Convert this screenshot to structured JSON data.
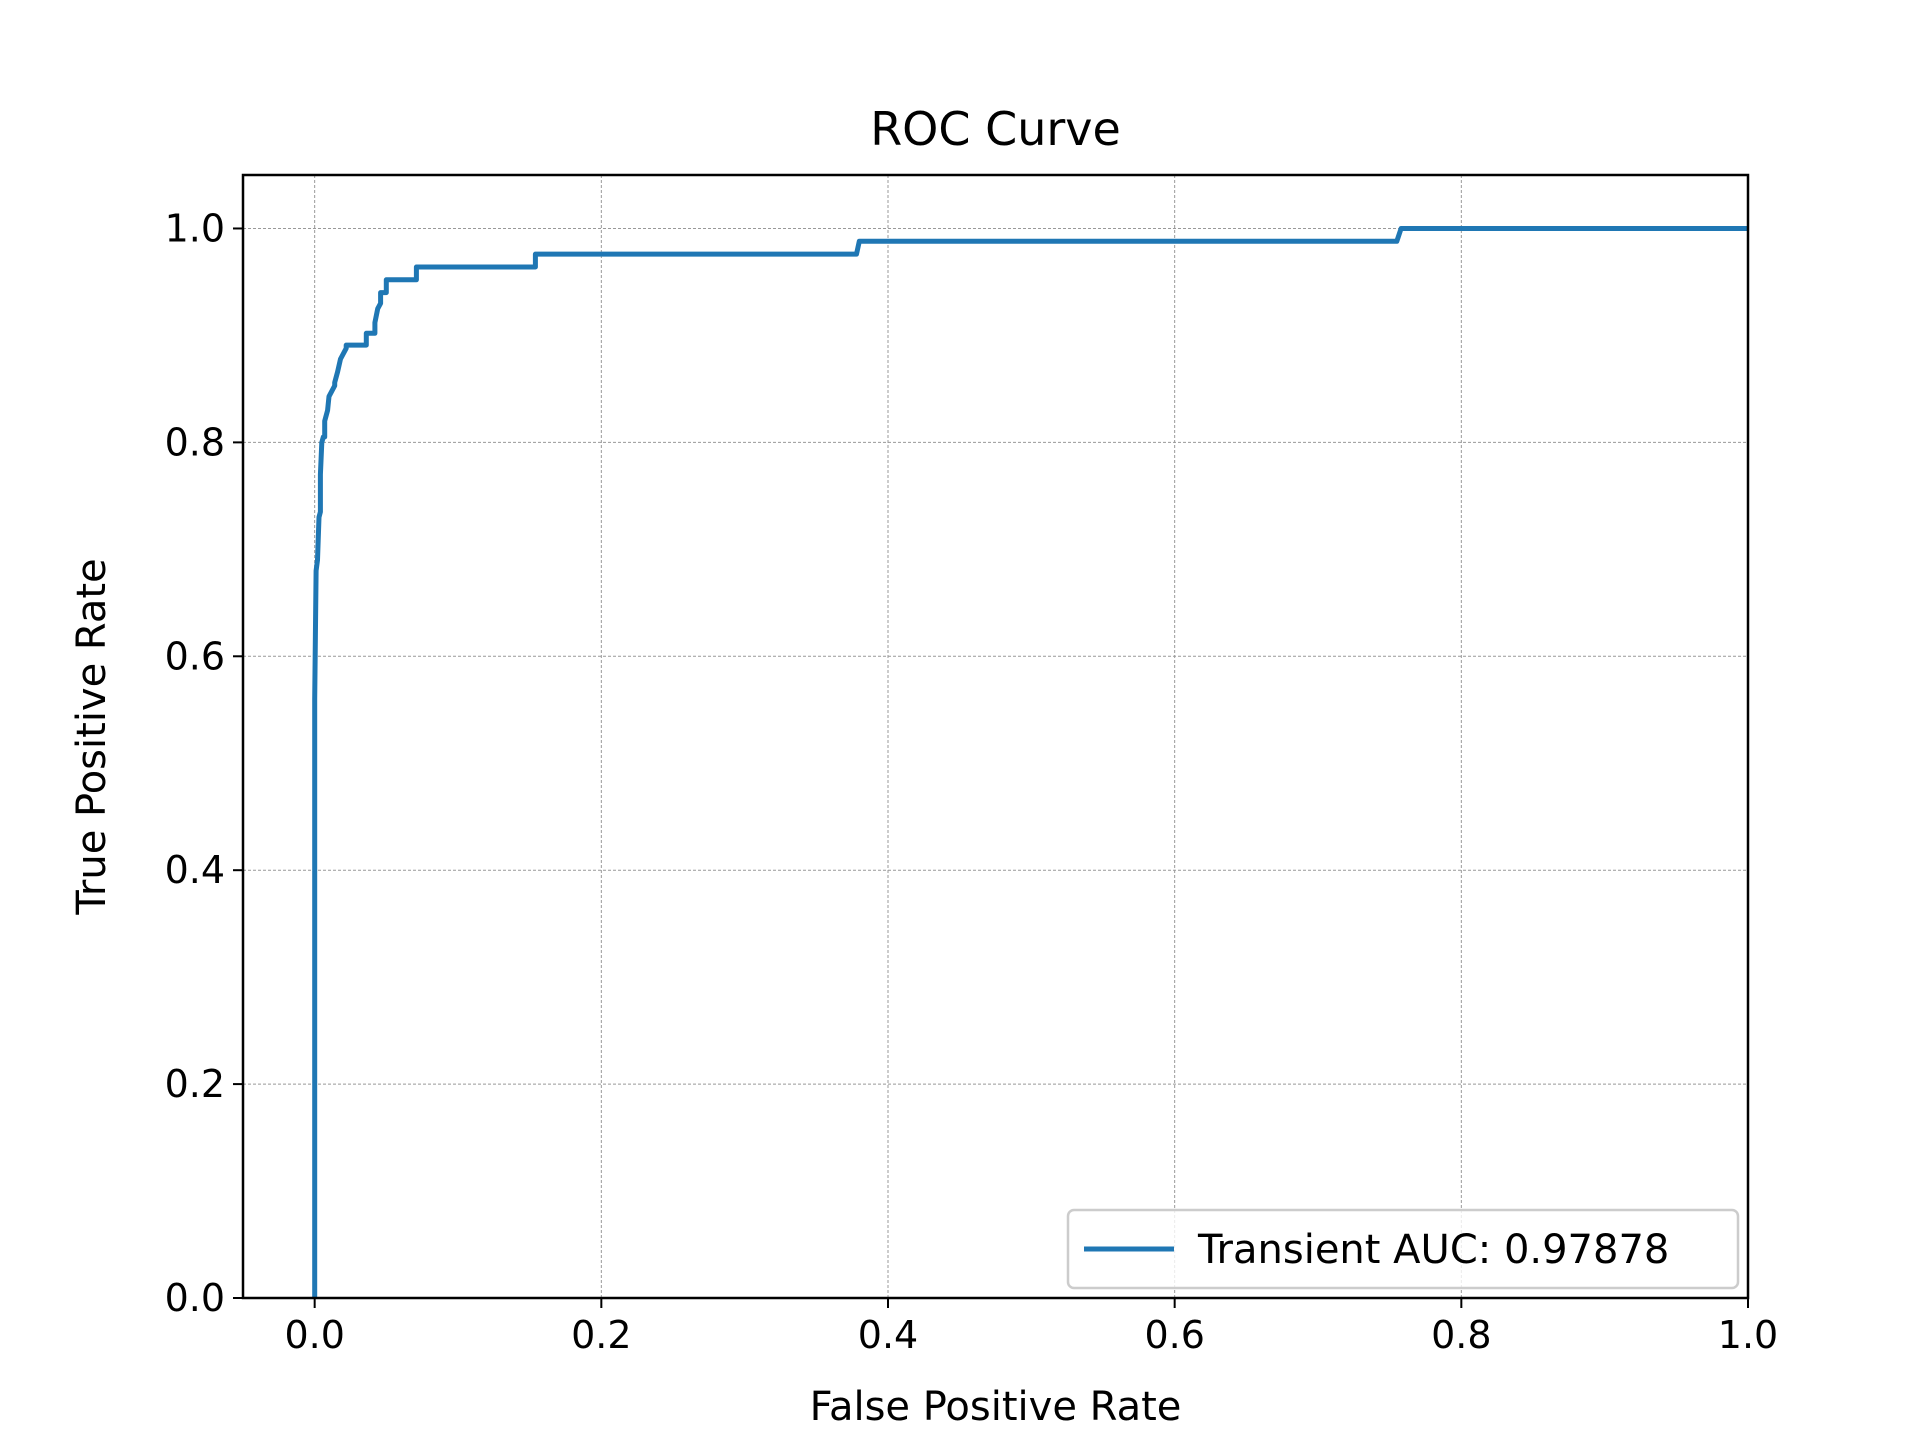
{
  "chart_data": {
    "type": "line",
    "title": "ROC Curve",
    "xlabel": "False Positive Rate",
    "ylabel": "True Positive Rate",
    "xlim": [
      -0.05,
      1.0
    ],
    "ylim": [
      0.0,
      1.05
    ],
    "xticks": [
      0.0,
      0.2,
      0.4,
      0.6,
      0.8,
      1.0
    ],
    "xtick_labels": [
      "0.0",
      "0.2",
      "0.4",
      "0.6",
      "0.8",
      "1.0"
    ],
    "yticks": [
      0.0,
      0.2,
      0.4,
      0.6,
      0.8,
      1.0
    ],
    "ytick_labels": [
      "0.0",
      "0.2",
      "0.4",
      "0.6",
      "0.8",
      "1.0"
    ],
    "grid": true,
    "legend_position": "lower-right",
    "series": [
      {
        "name": "Transient AUC: 0.97878",
        "color": "#1f77b4",
        "x": [
          0.0,
          0.0,
          0.001,
          0.002,
          0.003,
          0.004,
          0.004,
          0.005,
          0.006,
          0.007,
          0.007,
          0.009,
          0.01,
          0.01,
          0.014,
          0.014,
          0.016,
          0.018,
          0.018,
          0.022,
          0.022,
          0.036,
          0.036,
          0.042,
          0.042,
          0.044,
          0.046,
          0.046,
          0.05,
          0.05,
          0.071,
          0.071,
          0.154,
          0.154,
          0.378,
          0.38,
          0.755,
          0.758,
          1.0
        ],
        "y": [
          0.0,
          0.56,
          0.68,
          0.69,
          0.73,
          0.735,
          0.77,
          0.8,
          0.805,
          0.805,
          0.82,
          0.83,
          0.843,
          0.843,
          0.853,
          0.856,
          0.866,
          0.878,
          0.878,
          0.888,
          0.891,
          0.891,
          0.902,
          0.902,
          0.912,
          0.925,
          0.93,
          0.94,
          0.94,
          0.952,
          0.952,
          0.964,
          0.964,
          0.976,
          0.976,
          0.988,
          0.988,
          1.0,
          1.0
        ]
      }
    ]
  }
}
